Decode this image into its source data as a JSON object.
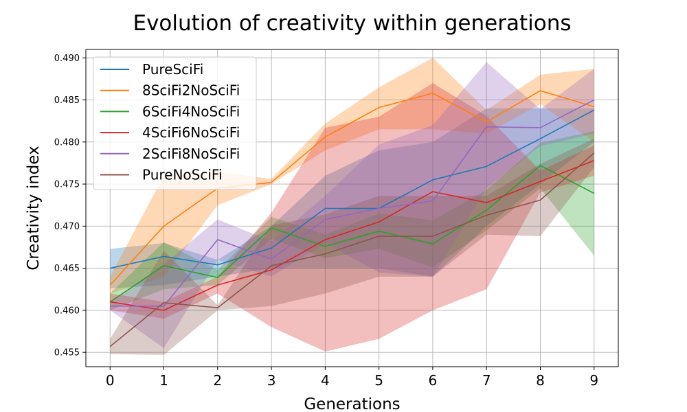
{
  "chart_data": {
    "type": "line",
    "title": "Evolution of creativity within generations",
    "xlabel": "Generations",
    "ylabel": "Creativity index",
    "x": [
      0,
      1,
      2,
      3,
      4,
      5,
      6,
      7,
      8,
      9
    ],
    "xlim": [
      -0.45,
      9.45
    ],
    "ylim": [
      0.4533,
      0.491
    ],
    "yticks": [
      "0.455",
      "0.460",
      "0.465",
      "0.470",
      "0.475",
      "0.480",
      "0.485",
      "0.490"
    ],
    "grid": true,
    "legend_position": "top-left",
    "series": [
      {
        "name": "PureSciFi",
        "color": "#1f77b4",
        "values": [
          0.465,
          0.4664,
          0.4654,
          0.4674,
          0.4721,
          0.4721,
          0.4755,
          0.4771,
          0.4804,
          0.4838
        ],
        "lower": [
          0.4626,
          0.463,
          0.464,
          0.465,
          0.465,
          0.465,
          0.464,
          0.47,
          0.475,
          0.48
        ],
        "upper": [
          0.4673,
          0.468,
          0.466,
          0.47,
          0.476,
          0.479,
          0.48,
          0.484,
          0.484,
          0.484
        ]
      },
      {
        "name": "8SciFi2NoSciFi",
        "color": "#ff7f0e",
        "values": [
          0.463,
          0.47,
          0.4745,
          0.4752,
          0.4806,
          0.4841,
          0.4858,
          0.4824,
          0.4861,
          0.4842
        ],
        "lower": [
          0.462,
          0.464,
          0.4725,
          0.475,
          0.479,
          0.4815,
          0.4815,
          0.481,
          0.4845,
          0.48
        ],
        "upper": [
          0.464,
          0.476,
          0.4765,
          0.4756,
          0.4822,
          0.4865,
          0.49,
          0.4838,
          0.488,
          0.4887
        ]
      },
      {
        "name": "6SciFi4NoSciFi",
        "color": "#2ca02c",
        "values": [
          0.461,
          0.4653,
          0.4639,
          0.4698,
          0.4676,
          0.4694,
          0.4679,
          0.4719,
          0.4772,
          0.4739
        ],
        "lower": [
          0.46,
          0.4625,
          0.463,
          0.4685,
          0.4662,
          0.4673,
          0.4651,
          0.4695,
          0.4745,
          0.4665
        ],
        "upper": [
          0.462,
          0.4681,
          0.4648,
          0.4711,
          0.469,
          0.4715,
          0.4707,
          0.4743,
          0.4799,
          0.4813
        ]
      },
      {
        "name": "4SciFi6NoSciFi",
        "color": "#d62728",
        "values": [
          0.461,
          0.46,
          0.463,
          0.4648,
          0.4684,
          0.4705,
          0.4741,
          0.4728,
          0.4753,
          0.4778
        ],
        "lower": [
          0.46,
          0.459,
          0.462,
          0.458,
          0.4551,
          0.4566,
          0.46,
          0.4625,
          0.474,
          0.476
        ],
        "upper": [
          0.462,
          0.461,
          0.464,
          0.4716,
          0.4817,
          0.483,
          0.487,
          0.4831,
          0.4766,
          0.4796
        ]
      },
      {
        "name": "2SciFi8NoSciFi",
        "color": "#9467bd",
        "values": [
          0.4605,
          0.4605,
          0.4684,
          0.4661,
          0.4708,
          0.4721,
          0.473,
          0.4818,
          0.4817,
          0.485
        ],
        "lower": [
          0.46,
          0.4555,
          0.466,
          0.464,
          0.468,
          0.4645,
          0.464,
          0.4745,
          0.4795,
          0.481
        ],
        "upper": [
          0.461,
          0.4655,
          0.4708,
          0.4682,
          0.4736,
          0.4797,
          0.482,
          0.4895,
          0.4839,
          0.4887
        ]
      },
      {
        "name": "PureNoSciFi",
        "color": "#8c564b",
        "values": [
          0.4557,
          0.4609,
          0.4603,
          0.4653,
          0.4667,
          0.4688,
          0.4688,
          0.4713,
          0.4731,
          0.4787
        ],
        "lower": [
          0.4548,
          0.4547,
          0.46,
          0.4605,
          0.462,
          0.464,
          0.464,
          0.469,
          0.4688,
          0.477
        ],
        "upper": [
          0.4566,
          0.4671,
          0.4606,
          0.4701,
          0.4714,
          0.4736,
          0.4736,
          0.4736,
          0.4774,
          0.4804
        ]
      }
    ]
  }
}
